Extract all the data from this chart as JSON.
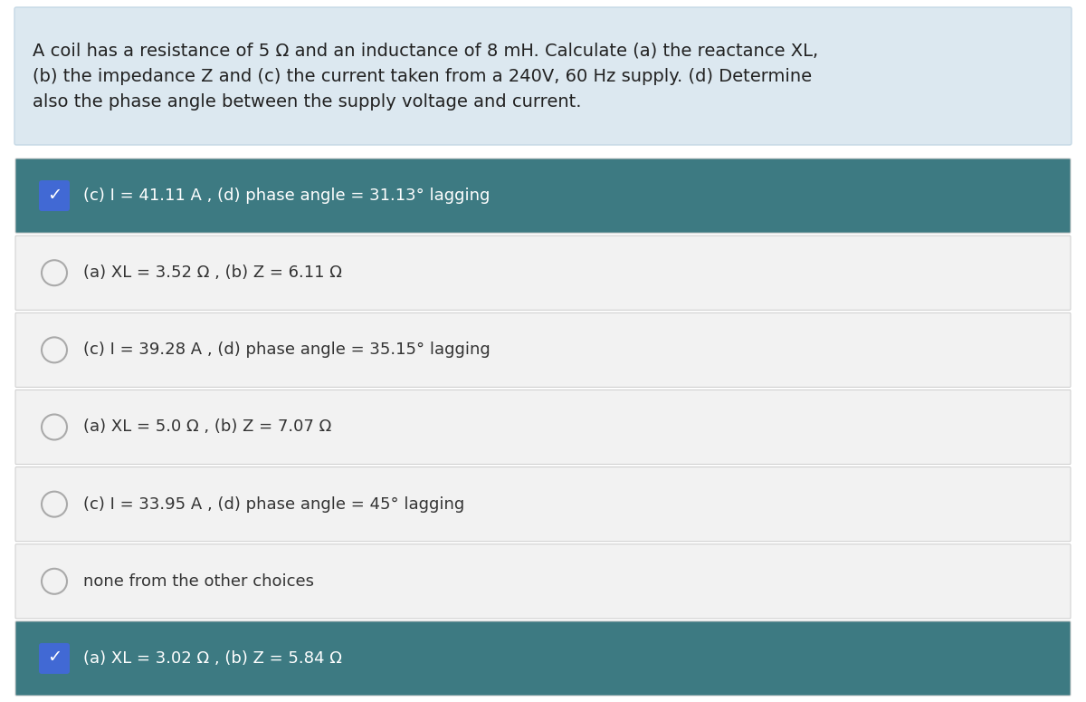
{
  "question": "A coil has a resistance of 5 Ω and an inductance of 8 mH. Calculate (a) the reactance XL,\n(b) the impedance Z and (c) the current taken from a 240V, 60 Hz supply. (d) Determine\nalso the phase angle between the supply voltage and current.",
  "question_bg": "#dce8f0",
  "question_border": "#c5d8e5",
  "options": [
    {
      "text": "(c) I = 41.11 A , (d) phase angle = 31.13° lagging",
      "selected": true,
      "bg": "#3d7a82",
      "text_color": "#ffffff"
    },
    {
      "text": "(a) XL = 3.52 Ω , (b) Z = 6.11 Ω",
      "selected": false,
      "bg": "#f2f2f2",
      "text_color": "#333333"
    },
    {
      "text": "(c) I = 39.28 A , (d) phase angle = 35.15° lagging",
      "selected": false,
      "bg": "#f2f2f2",
      "text_color": "#333333"
    },
    {
      "text": "(a) XL = 5.0 Ω , (b) Z = 7.07 Ω",
      "selected": false,
      "bg": "#f2f2f2",
      "text_color": "#333333"
    },
    {
      "text": "(c) I = 33.95 A , (d) phase angle = 45° lagging",
      "selected": false,
      "bg": "#f2f2f2",
      "text_color": "#333333"
    },
    {
      "text": "none from the other choices",
      "selected": false,
      "bg": "#f2f2f2",
      "text_color": "#333333"
    },
    {
      "text": "(a) XL = 3.02 Ω , (b) Z = 5.84 Ω",
      "selected": true,
      "bg": "#3d7a82",
      "text_color": "#ffffff"
    }
  ],
  "overall_bg": "#ffffff",
  "check_icon_color": "#4169d4",
  "check_icon_bg": "#4169d4",
  "circle_edge_color": "#aaaaaa",
  "font_size_question": 14.0,
  "font_size_option": 13.0,
  "fig_width": 12.0,
  "fig_height": 7.75,
  "dpi": 100
}
